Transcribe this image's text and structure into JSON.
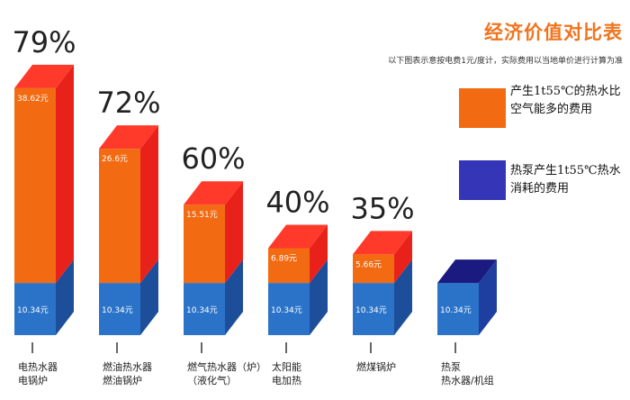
{
  "header": {
    "title": "经济价值对比表",
    "note": "以下图表示意按电费1元/度计，实际费用以当地单价进行计算为准"
  },
  "legend": [
    {
      "label": "产生1t55℃的热水比空气能多的费用",
      "color": "#f26a12"
    },
    {
      "label": "热泵产生1t55℃热水消耗的费用",
      "color": "#3535b8"
    }
  ],
  "chart_data": {
    "type": "bar",
    "stacked": true,
    "categories": [
      [
        "电热水器",
        "电锅炉"
      ],
      [
        "燃油热水器",
        "燃油锅炉"
      ],
      [
        "燃气热水器（炉）",
        "（液化气）"
      ],
      [
        "太阳能",
        "电加热"
      ],
      [
        "燃煤锅炉"
      ],
      [
        "热泵",
        "热水器/机组"
      ]
    ],
    "series": [
      {
        "values": [
          10.34,
          10.34,
          10.34,
          10.34,
          10.34,
          10.34
        ],
        "labels": [
          "10.34元",
          "10.34元",
          "10.34元",
          "10.34元",
          "10.34元",
          "10.34元"
        ]
      },
      {
        "values": [
          38.62,
          26.6,
          15.51,
          6.89,
          5.66,
          0
        ],
        "labels": [
          "38.62元",
          "26.6元",
          "15.51元",
          "6.89元",
          "5.66元",
          ""
        ]
      }
    ],
    "percentages": [
      "79%",
      "72%",
      "60%",
      "40%",
      "35%",
      ""
    ],
    "colors": {
      "base_front": "#2a73c8",
      "base_side": "#1d4e9a",
      "base_top": "#4a8fd8",
      "upper_front": "#f26a12",
      "upper_side": "#e8221a",
      "upper_top": "#ff3a2a",
      "heatpump_front": "#2a73c8",
      "heatpump_side": "#1f3fa0",
      "heatpump_top": "#1a1a80"
    }
  }
}
